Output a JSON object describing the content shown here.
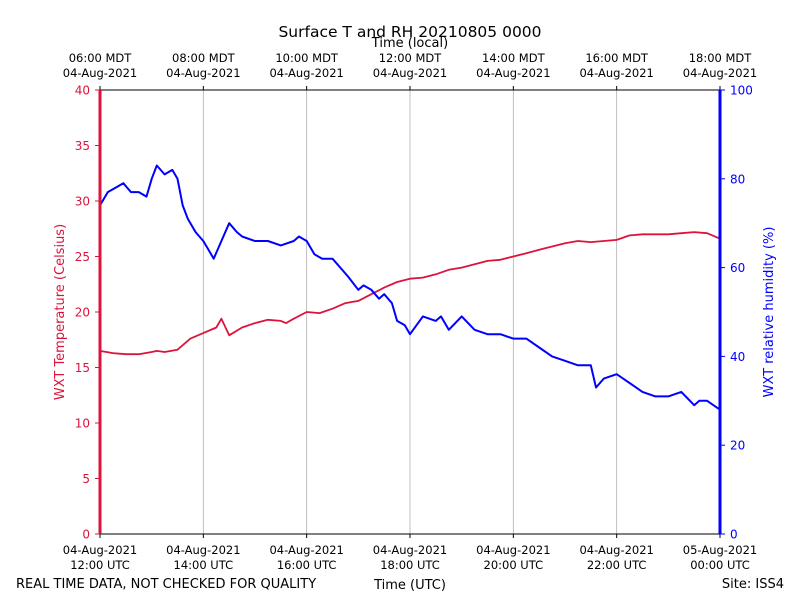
{
  "chart_data": {
    "type": "line",
    "title": "Surface T and RH 20210805 0000",
    "top_xlabel": "Time (local)",
    "xlabel": "Time (UTC)",
    "ylabel_left": "WXT Temperature (Celsius)",
    "ylabel_right": "WXT relative humidity (%)",
    "footer_left": "REAL TIME DATA, NOT CHECKED FOR QUALITY",
    "footer_right": "Site: ISS4",
    "x_unit": "hours since 04-Aug-2021 12:00 UTC",
    "xlim": [
      0,
      12
    ],
    "ylim_left": [
      0,
      40
    ],
    "ylim_right": [
      0,
      100
    ],
    "grid": "vertical",
    "colors": {
      "temperature": "#dc143c",
      "humidity": "#0000ff",
      "grid": "#b0b0b0",
      "axis": "#000000"
    },
    "x_ticks_bottom": [
      {
        "x": 0,
        "line1": "04-Aug-2021",
        "line2": "12:00 UTC"
      },
      {
        "x": 2,
        "line1": "04-Aug-2021",
        "line2": "14:00 UTC"
      },
      {
        "x": 4,
        "line1": "04-Aug-2021",
        "line2": "16:00 UTC"
      },
      {
        "x": 6,
        "line1": "04-Aug-2021",
        "line2": "18:00 UTC"
      },
      {
        "x": 8,
        "line1": "04-Aug-2021",
        "line2": "20:00 UTC"
      },
      {
        "x": 10,
        "line1": "04-Aug-2021",
        "line2": "22:00 UTC"
      },
      {
        "x": 12,
        "line1": "05-Aug-2021",
        "line2": "00:00 UTC"
      }
    ],
    "x_ticks_top": [
      {
        "x": 0,
        "line1": "06:00 MDT",
        "line2": "04-Aug-2021"
      },
      {
        "x": 2,
        "line1": "08:00 MDT",
        "line2": "04-Aug-2021"
      },
      {
        "x": 4,
        "line1": "10:00 MDT",
        "line2": "04-Aug-2021"
      },
      {
        "x": 6,
        "line1": "12:00 MDT",
        "line2": "04-Aug-2021"
      },
      {
        "x": 8,
        "line1": "14:00 MDT",
        "line2": "04-Aug-2021"
      },
      {
        "x": 10,
        "line1": "16:00 MDT",
        "line2": "04-Aug-2021"
      },
      {
        "x": 12,
        "line1": "18:00 MDT",
        "line2": "04-Aug-2021"
      }
    ],
    "y_ticks_left": [
      0,
      5,
      10,
      15,
      20,
      25,
      30,
      35,
      40
    ],
    "y_ticks_right": [
      0,
      20,
      40,
      60,
      80,
      100
    ],
    "series": [
      {
        "name": "WXT Temperature (Celsius)",
        "axis": "left",
        "x": [
          0,
          0.25,
          0.5,
          0.75,
          1.0,
          1.1,
          1.25,
          1.5,
          1.75,
          2.0,
          2.25,
          2.35,
          2.5,
          2.75,
          3.0,
          3.25,
          3.5,
          3.6,
          3.75,
          4.0,
          4.25,
          4.5,
          4.75,
          5.0,
          5.25,
          5.5,
          5.75,
          6.0,
          6.25,
          6.5,
          6.75,
          7.0,
          7.25,
          7.5,
          7.75,
          8.0,
          8.25,
          8.5,
          8.75,
          9.0,
          9.25,
          9.5,
          9.75,
          10.0,
          10.25,
          10.5,
          10.75,
          11.0,
          11.25,
          11.5,
          11.75,
          12.0
        ],
        "values": [
          16.5,
          16.3,
          16.2,
          16.2,
          16.4,
          16.5,
          16.4,
          16.6,
          17.6,
          18.1,
          18.6,
          19.4,
          17.9,
          18.6,
          19.0,
          19.3,
          19.2,
          19.0,
          19.4,
          20.0,
          19.9,
          20.3,
          20.8,
          21.0,
          21.6,
          22.2,
          22.7,
          23.0,
          23.1,
          23.4,
          23.8,
          24.0,
          24.3,
          24.6,
          24.7,
          25.0,
          25.3,
          25.6,
          25.9,
          26.2,
          26.4,
          26.3,
          26.4,
          26.5,
          26.9,
          27.0,
          27.0,
          27.0,
          27.1,
          27.2,
          27.1,
          26.6
        ]
      },
      {
        "name": "WXT relative humidity (%)",
        "axis": "right",
        "x": [
          0,
          0.15,
          0.3,
          0.45,
          0.6,
          0.75,
          0.9,
          1.0,
          1.1,
          1.25,
          1.4,
          1.5,
          1.6,
          1.7,
          1.75,
          1.85,
          2.0,
          2.1,
          2.2,
          2.35,
          2.5,
          2.65,
          2.75,
          3.0,
          3.25,
          3.5,
          3.75,
          3.85,
          4.0,
          4.15,
          4.3,
          4.5,
          4.65,
          4.8,
          5.0,
          5.1,
          5.25,
          5.4,
          5.5,
          5.65,
          5.75,
          5.9,
          6.0,
          6.25,
          6.5,
          6.6,
          6.75,
          7.0,
          7.25,
          7.5,
          7.75,
          8.0,
          8.25,
          8.5,
          8.75,
          9.0,
          9.25,
          9.5,
          9.6,
          9.75,
          10.0,
          10.25,
          10.5,
          10.75,
          11.0,
          11.25,
          11.5,
          11.6,
          11.75,
          12.0
        ],
        "values": [
          74,
          77,
          78,
          79,
          77,
          77,
          76,
          80,
          83,
          81,
          82,
          80,
          74,
          71,
          70,
          68,
          66,
          64,
          62,
          66,
          70,
          68,
          67,
          66,
          66,
          65,
          66,
          67,
          66,
          63,
          62,
          62,
          60,
          58,
          55,
          56,
          55,
          53,
          54,
          52,
          48,
          47,
          45,
          49,
          48,
          49,
          46,
          49,
          46,
          45,
          45,
          44,
          44,
          42,
          40,
          39,
          38,
          38,
          33,
          35,
          36,
          34,
          32,
          31,
          31,
          32,
          29,
          30,
          30,
          28
        ]
      }
    ]
  }
}
